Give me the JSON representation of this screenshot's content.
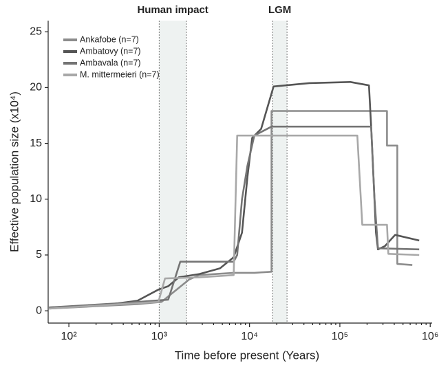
{
  "chart_data": {
    "type": "line",
    "x_label": "Time before present (Years)",
    "y_label": "Effective population size (x10⁴)",
    "xscale": "log",
    "xlim": [
      59,
      1050000
    ],
    "ylim": [
      -1.1,
      26
    ],
    "xticks": [
      {
        "value": 100,
        "label": "10²"
      },
      {
        "value": 1000,
        "label": "10³"
      },
      {
        "value": 10000,
        "label": "10⁴"
      },
      {
        "value": 100000,
        "label": "10⁵"
      },
      {
        "value": 1000000,
        "label": "10⁶"
      }
    ],
    "yticks": [
      0,
      5,
      10,
      15,
      20,
      25
    ],
    "legend": "upper left",
    "annotations": [
      {
        "label": "Human impact",
        "x": [
          1000,
          2000
        ]
      },
      {
        "label": "LGM",
        "x": [
          18000,
          26000
        ]
      }
    ],
    "series": [
      {
        "name": "Ankafobe (n=7)",
        "color": "#8c8c8c",
        "x": [
          60,
          575,
          1060,
          2140,
          2790,
          6680,
          11300,
          17500,
          17500,
          332000,
          332000,
          432000,
          432000,
          634000
        ],
        "values": [
          0.2,
          0.6,
          0.8,
          2.8,
          3.2,
          3.4,
          3.4,
          3.5,
          17.9,
          17.9,
          14.8,
          14.8,
          4.2,
          4.1
        ]
      },
      {
        "name": "Ambatovy (n=7)",
        "color": "#555555",
        "x": [
          60,
          240,
          575,
          980,
          1260,
          1650,
          2790,
          4710,
          6680,
          8250,
          9480,
          10700,
          13450,
          18450,
          45900,
          131000,
          210000,
          222000,
          251000,
          264000,
          315000,
          409000,
          755000
        ],
        "values": [
          0.3,
          0.5,
          0.9,
          1.9,
          2.2,
          3.0,
          3.3,
          3.8,
          4.8,
          7,
          12,
          15.5,
          16.3,
          20.1,
          20.4,
          20.5,
          20.2,
          16.5,
          7,
          5.5,
          5.8,
          6.8,
          6.3
        ]
      },
      {
        "name": "Ambavala (n=7)",
        "color": "#747474",
        "x": [
          60,
          405,
          1260,
          1710,
          6680,
          7300,
          8250,
          9480,
          11300,
          17500,
          222000,
          242000,
          264000,
          755000
        ],
        "values": [
          0.3,
          0.7,
          1.0,
          4.4,
          4.4,
          5,
          10,
          13,
          15.7,
          16.5,
          16.5,
          10,
          5.6,
          5.5
        ]
      },
      {
        "name": "M. mittermeieri (n=7)",
        "color": "#a8a8a8",
        "x": [
          60,
          980,
          1160,
          2790,
          6680,
          7300,
          156000,
          177000,
          332000,
          344000,
          755000
        ],
        "values": [
          0.2,
          0.8,
          2.9,
          3.0,
          3.2,
          15.7,
          15.7,
          7.7,
          7.7,
          5.1,
          5.0
        ]
      }
    ]
  }
}
